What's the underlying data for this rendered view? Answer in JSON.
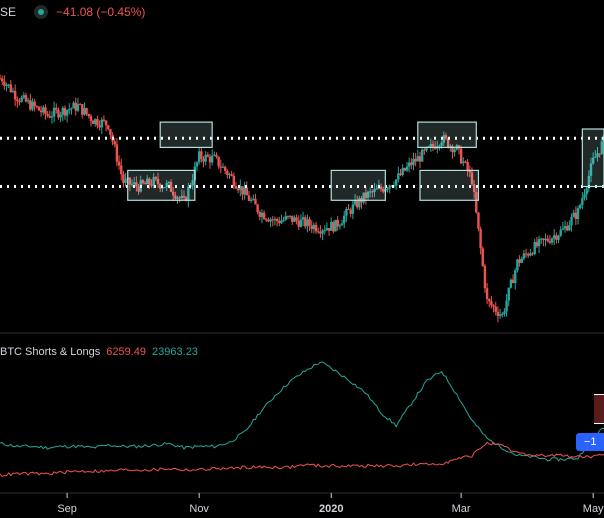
{
  "header": {
    "symbol": "SE",
    "change": "−41.08 (−0.45%)"
  },
  "indicator": {
    "name": "BTC Shorts & Longs",
    "shorts_value": "6259.49",
    "longs_value": "23963.23",
    "shorts_color": "#ef5350",
    "longs_color": "#26a69a"
  },
  "badge": {
    "label": "−1"
  },
  "x_axis_labels": [
    {
      "label": "Sep",
      "date": "2019-09-01",
      "is_year": false
    },
    {
      "label": "Nov",
      "date": "2019-11-01",
      "is_year": false
    },
    {
      "label": "2020",
      "date": "2020-01-01",
      "is_year": true
    },
    {
      "label": "Mar",
      "date": "2020-03-01",
      "is_year": false
    },
    {
      "label": "May",
      "date": "2020-05-01",
      "is_year": false
    }
  ],
  "chart_data": {
    "type": "candlestick",
    "x_range": [
      "2019-08-01",
      "2020-05-06"
    ],
    "up_color": "#26a69a",
    "down_color": "#ef5350",
    "price": {
      "dates": [
        "2019-08-02",
        "2019-08-09",
        "2019-08-16",
        "2019-08-23",
        "2019-08-30",
        "2019-09-06",
        "2019-09-13",
        "2019-09-20",
        "2019-09-27",
        "2019-10-04",
        "2019-10-11",
        "2019-10-18",
        "2019-10-25",
        "2019-11-01",
        "2019-11-08",
        "2019-11-15",
        "2019-11-22",
        "2019-11-29",
        "2019-12-06",
        "2019-12-13",
        "2019-12-20",
        "2019-12-27",
        "2020-01-03",
        "2020-01-10",
        "2020-01-17",
        "2020-01-24",
        "2020-01-31",
        "2020-02-07",
        "2020-02-14",
        "2020-02-21",
        "2020-02-28",
        "2020-03-06",
        "2020-03-13",
        "2020-03-20",
        "2020-03-27",
        "2020-04-03",
        "2020-04-10",
        "2020-04-17",
        "2020-04-24",
        "2020-05-01",
        "2020-05-06"
      ],
      "close": [
        0.92,
        0.84,
        0.8,
        0.76,
        0.78,
        0.8,
        0.74,
        0.72,
        0.47,
        0.45,
        0.47,
        0.45,
        0.38,
        0.58,
        0.57,
        0.5,
        0.42,
        0.34,
        0.3,
        0.31,
        0.29,
        0.27,
        0.28,
        0.35,
        0.41,
        0.44,
        0.48,
        0.55,
        0.6,
        0.66,
        0.61,
        0.48,
        -0.05,
        -0.11,
        0.12,
        0.18,
        0.22,
        0.26,
        0.34,
        0.56,
        0.65
      ]
    },
    "horizontal_levels": [
      0.66,
      0.45
    ],
    "boxes": [
      {
        "from": "2019-09-29",
        "to": "2019-10-30",
        "low": 0.39,
        "high": 0.52
      },
      {
        "from": "2019-10-14",
        "to": "2019-11-07",
        "low": 0.62,
        "high": 0.73
      },
      {
        "from": "2020-01-01",
        "to": "2020-01-26",
        "low": 0.39,
        "high": 0.52
      },
      {
        "from": "2020-02-10",
        "to": "2020-03-08",
        "low": 0.62,
        "high": 0.73
      },
      {
        "from": "2020-02-11",
        "to": "2020-03-09",
        "low": 0.39,
        "high": 0.52
      },
      {
        "from": "2020-04-26",
        "to": "2020-05-06",
        "low": 0.45,
        "high": 0.7
      }
    ],
    "series": [
      {
        "values": [
          0.24,
          0.22,
          0.22,
          0.21,
          0.22,
          0.22,
          0.21,
          0.23,
          0.22,
          0.22,
          0.23,
          0.24,
          0.21,
          0.22,
          0.22,
          0.25,
          0.33,
          0.48,
          0.61,
          0.72,
          0.8,
          0.87,
          0.8,
          0.72,
          0.63,
          0.48,
          0.38,
          0.55,
          0.72,
          0.8,
          0.62,
          0.42,
          0.28,
          0.21,
          0.15,
          0.14,
          0.12,
          0.12,
          0.13,
          0.3,
          0.36
        ]
      },
      {
        "values": [
          0.0,
          0.01,
          0.01,
          0.01,
          0.02,
          0.03,
          0.03,
          0.03,
          0.04,
          0.04,
          0.04,
          0.05,
          0.04,
          0.04,
          0.05,
          0.05,
          0.06,
          0.06,
          0.06,
          0.06,
          0.08,
          0.07,
          0.07,
          0.07,
          0.07,
          0.07,
          0.07,
          0.08,
          0.08,
          0.09,
          0.12,
          0.15,
          0.25,
          0.22,
          0.17,
          0.15,
          0.15,
          0.15,
          0.14,
          0.14,
          0.15
        ]
      }
    ]
  }
}
